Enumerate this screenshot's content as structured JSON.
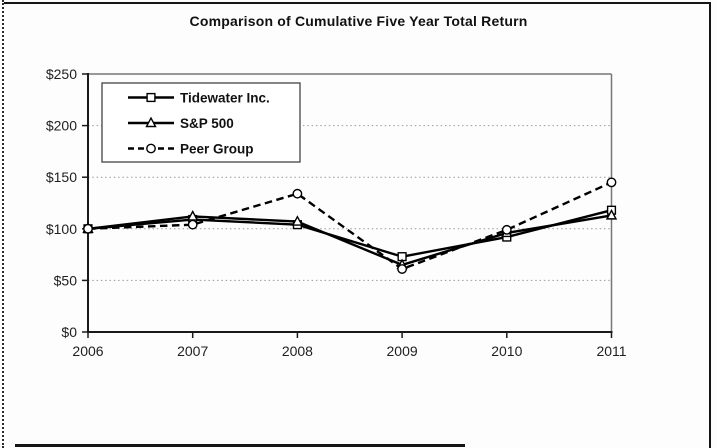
{
  "title": "Comparison of Cumulative Five Year Total Return",
  "chart_data": {
    "type": "line",
    "title": "Comparison of Cumulative Five Year Total Return",
    "x": [
      "2006",
      "2007",
      "2008",
      "2009",
      "2010",
      "2011"
    ],
    "series": [
      {
        "name": "Tidewater Inc.",
        "values": [
          100,
          109,
          104,
          73,
          92,
          118
        ],
        "line_style": "solid",
        "marker": "square"
      },
      {
        "name": "S&P 500",
        "values": [
          100,
          112,
          107,
          65,
          96,
          113
        ],
        "line_style": "solid",
        "marker": "triangle"
      },
      {
        "name": "Peer Group",
        "values": [
          100,
          104,
          134,
          61,
          99,
          145
        ],
        "line_style": "dashed",
        "marker": "circle"
      }
    ],
    "xlabel": "",
    "ylabel": "",
    "ylim": [
      0,
      250
    ],
    "yticks": [
      0,
      50,
      100,
      150,
      200,
      250
    ],
    "ytick_labels": [
      "$0",
      "$50",
      "$100",
      "$150",
      "$200",
      "$250"
    ],
    "grid": "horizontal-dotted",
    "legend_position": "upper-left-inside",
    "series_color": "#000000",
    "marker_fill": "#ffffff",
    "grid_color": "#9a9a9a",
    "axis_color": "#1a1a1a",
    "frame_color": "#777777",
    "label_color": "#1f1f1f"
  }
}
